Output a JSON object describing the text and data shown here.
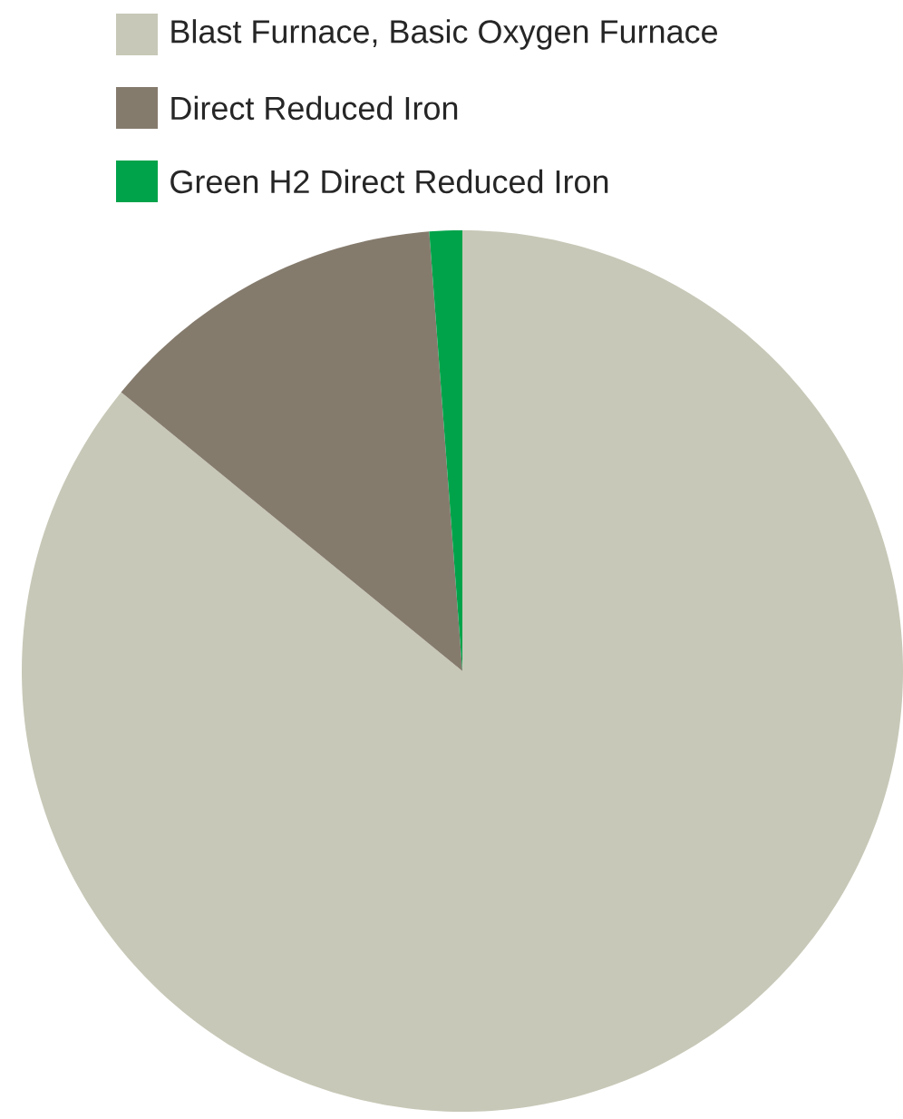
{
  "chart_data": {
    "type": "pie",
    "categories": [
      "Blast Furnace, Basic Oxygen Furnace",
      "Direct Reduced Iron",
      "Green H2 Direct Reduced Iron"
    ],
    "values": [
      85.9,
      12.9,
      1.2
    ],
    "colors": [
      "#c8c8b8",
      "#857b6d",
      "#00a34a"
    ],
    "legend": "top left"
  }
}
